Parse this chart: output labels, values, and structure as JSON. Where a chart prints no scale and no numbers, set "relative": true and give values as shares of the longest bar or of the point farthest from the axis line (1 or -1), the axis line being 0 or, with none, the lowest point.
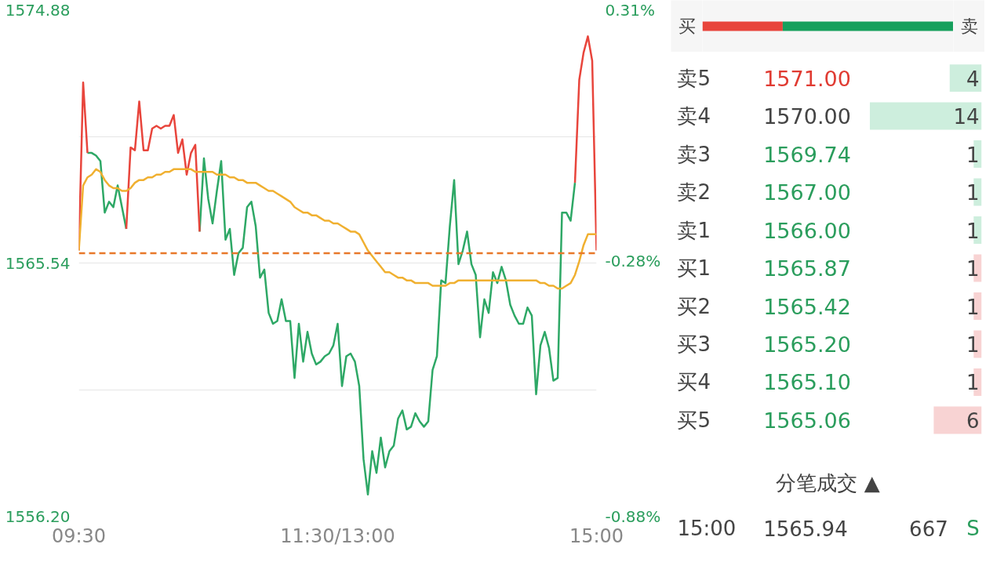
{
  "chart_data": [
    {
      "type": "line",
      "ylim": [
        1556.2,
        1574.88
      ],
      "y2lim": [
        -0.88,
        0.31
      ],
      "categories": [
        "09:30",
        null,
        null,
        null,
        null,
        null,
        null,
        null,
        null,
        null,
        null,
        null,
        null,
        null,
        null,
        null,
        null,
        null,
        null,
        null,
        null,
        null,
        null,
        null,
        null,
        null,
        null,
        null,
        null,
        null,
        null,
        null,
        null,
        null,
        null,
        null,
        null,
        null,
        null,
        null,
        null,
        null,
        null,
        null,
        null,
        null,
        null,
        null,
        null,
        null,
        null,
        null,
        null,
        null,
        null,
        null,
        null,
        null,
        null,
        null,
        "11:30/13:00",
        null,
        null,
        null,
        null,
        null,
        null,
        null,
        null,
        null,
        null,
        null,
        null,
        null,
        null,
        null,
        null,
        null,
        null,
        null,
        null,
        null,
        null,
        null,
        null,
        null,
        null,
        null,
        null,
        null,
        null,
        null,
        null,
        null,
        null,
        null,
        null,
        null,
        null,
        null,
        null,
        null,
        null,
        null,
        null,
        null,
        null,
        null,
        null,
        null,
        null,
        null,
        null,
        null,
        null,
        null,
        null,
        null,
        null,
        null,
        "15:00"
      ],
      "yticks": [
        1574.88,
        {
          "value": 1570.21,
          "label": null
        },
        1565.54,
        {
          "value": 1560.87,
          "label": null
        },
        {
          "value": 1556.2,
          "label": "1556.20"
        }
      ],
      "y2ticks": [
        {
          "value": 0.31,
          "label": "0.31%"
        },
        {
          "value": -0.28,
          "label": "-0.28%"
        },
        {
          "value": -0.88,
          "label": "-0.88%"
        }
      ],
      "grid": "y",
      "ref_lines": [
        {
          "axis": "y",
          "value": 1565.9,
          "color": "#e8782a",
          "line_style": "dashed"
        }
      ],
      "series": [
        {
          "color": "#2ea866",
          "values": [
            null,
            null,
            1569.6,
            1569.6,
            1569.5,
            1569.3,
            1567.4,
            1567.8,
            1567.6,
            1568.4,
            1567.6,
            1566.8,
            null,
            null,
            null,
            null,
            null,
            null,
            null,
            null,
            null,
            null,
            null,
            null,
            null,
            null,
            null,
            null,
            1566.7,
            1569.4,
            1567.9,
            1567.0,
            1568.2,
            1569.3,
            1566.4,
            1566.8,
            1565.1,
            1565.9,
            1566.1,
            1567.6,
            1567.8,
            1566.9,
            1565.0,
            1565.3,
            1563.7,
            1563.3,
            1563.4,
            1564.2,
            1563.4,
            1563.4,
            1561.3,
            1563.3,
            1561.9,
            1563.0,
            1562.2,
            1561.8,
            1561.9,
            1562.1,
            1562.2,
            1562.5,
            1563.3,
            1561.0,
            1562.1,
            1562.2,
            1561.9,
            1561.0,
            1558.3,
            1557.0,
            1558.6,
            1557.8,
            1559.1,
            1558.0,
            1558.6,
            1558.8,
            1559.8,
            1560.1,
            1559.4,
            1559.5,
            1560.0,
            1559.7,
            1559.5,
            1559.7,
            1561.6,
            1562.1,
            1564.9,
            1564.8,
            1566.9,
            1568.6,
            1565.5,
            1566.0,
            1566.7,
            1565.5,
            1565.1,
            1562.8,
            1564.2,
            1563.7,
            1565.2,
            1564.8,
            1565.4,
            1564.9,
            1564.0,
            1563.6,
            1563.3,
            1563.3,
            1563.9,
            1563.6,
            1560.7,
            1562.5,
            1563.0,
            1562.4,
            1561.2,
            1561.3,
            1567.4,
            1567.4,
            1567.1,
            1568.5,
            null,
            null,
            null,
            null,
            null
          ]
        },
        {
          "color": "#e8453c",
          "values": [
            1566.0,
            1572.2,
            1569.6,
            null,
            null,
            null,
            null,
            null,
            null,
            null,
            null,
            1566.8,
            1569.8,
            1569.7,
            1571.5,
            1569.7,
            1569.7,
            1570.5,
            1570.6,
            1570.5,
            1570.6,
            1570.6,
            1571.0,
            1569.6,
            1570.1,
            1568.8,
            1569.6,
            1569.9,
            1566.7,
            null,
            null,
            null,
            null,
            null,
            null,
            null,
            null,
            null,
            null,
            null,
            null,
            null,
            null,
            null,
            null,
            null,
            null,
            null,
            null,
            null,
            null,
            null,
            null,
            null,
            null,
            null,
            null,
            null,
            null,
            null,
            null,
            null,
            null,
            null,
            null,
            null,
            null,
            null,
            null,
            null,
            null,
            null,
            null,
            null,
            null,
            null,
            null,
            null,
            null,
            null,
            null,
            null,
            null,
            null,
            null,
            null,
            null,
            null,
            null,
            null,
            null,
            null,
            null,
            null,
            null,
            null,
            null,
            null,
            null,
            null,
            null,
            null,
            null,
            null,
            null,
            null,
            null,
            null,
            null,
            null,
            null,
            null,
            null,
            null,
            null,
            1568.5,
            1572.3,
            1573.3,
            1573.9,
            1573.0,
            1566.0
          ]
        },
        {
          "color": "#f0b030",
          "values": [
            1566.0,
            1568.4,
            1568.7,
            1568.8,
            1569.0,
            1568.9,
            1568.6,
            1568.4,
            1568.3,
            1568.3,
            1568.2,
            1568.2,
            1568.3,
            1568.5,
            1568.6,
            1568.6,
            1568.7,
            1568.7,
            1568.8,
            1568.8,
            1568.9,
            1568.9,
            1569.0,
            1569.0,
            1569.0,
            1569.0,
            1569.0,
            1568.9,
            1568.9,
            1568.9,
            1568.9,
            1568.9,
            1568.8,
            1568.8,
            1568.8,
            1568.7,
            1568.7,
            1568.6,
            1568.6,
            1568.5,
            1568.5,
            1568.5,
            1568.4,
            1568.3,
            1568.2,
            1568.2,
            1568.1,
            1568.0,
            1567.9,
            1567.8,
            1567.6,
            1567.5,
            1567.4,
            1567.4,
            1567.3,
            1567.3,
            1567.2,
            1567.1,
            1567.1,
            1567.0,
            1567.0,
            1566.9,
            1566.8,
            1566.7,
            1566.7,
            1566.6,
            1566.3,
            1566.0,
            1565.8,
            1565.6,
            1565.4,
            1565.2,
            1565.2,
            1565.1,
            1565.0,
            1565.0,
            1564.9,
            1564.9,
            1564.8,
            1564.8,
            1564.8,
            1564.8,
            1564.7,
            1564.7,
            1564.7,
            1564.7,
            1564.8,
            1564.8,
            1564.9,
            1564.9,
            1564.9,
            1564.9,
            1564.9,
            1564.9,
            1564.9,
            1564.9,
            1564.9,
            1564.9,
            1564.9,
            1564.9,
            1564.9,
            1564.9,
            1564.9,
            1564.9,
            1564.9,
            1564.9,
            1564.9,
            1564.8,
            1564.8,
            1564.7,
            1564.7,
            1564.6,
            1564.6,
            1564.7,
            1564.8,
            1565.1,
            1565.6,
            1566.2,
            1566.6,
            1566.6,
            1566.6
          ]
        }
      ]
    },
    {
      "type": "bar",
      "orientation": "horizontal",
      "stacked": true,
      "relative": true,
      "categories": [
        null
      ],
      "annotations": [
        "买",
        "卖"
      ],
      "series": [
        {
          "color": "#e8453c",
          "values": [
            0.32
          ]
        },
        {
          "color": "#17a05d",
          "values": [
            0.68
          ]
        }
      ]
    },
    {
      "type": "bar",
      "orientation": "horizontal",
      "data_labels": true,
      "categories": [
        "卖5",
        "卖4",
        "卖3",
        "卖2",
        "卖1",
        "买1",
        "买2",
        "买3",
        "买4",
        "买5"
      ],
      "annotations": [
        "1571.00",
        "1570.00",
        "1569.74",
        "1567.00",
        "1566.00",
        "1565.87",
        "1565.42",
        "1565.20",
        "1565.10",
        "1565.06",
        "分笔成交 ▲",
        "15:00",
        "1565.94",
        "667",
        "S"
      ],
      "series": [
        {
          "values": [
            4,
            14,
            1,
            1,
            1,
            1,
            1,
            1,
            1,
            6
          ],
          "colors": [
            "#cdeedd",
            "#cdeedd",
            "#cdeedd",
            "#cdeedd",
            "#cdeedd",
            "#f8d3d3",
            "#f8d3d3",
            "#f8d3d3",
            "#f8d3d3",
            "#f8d3d3"
          ]
        }
      ]
    }
  ]
}
